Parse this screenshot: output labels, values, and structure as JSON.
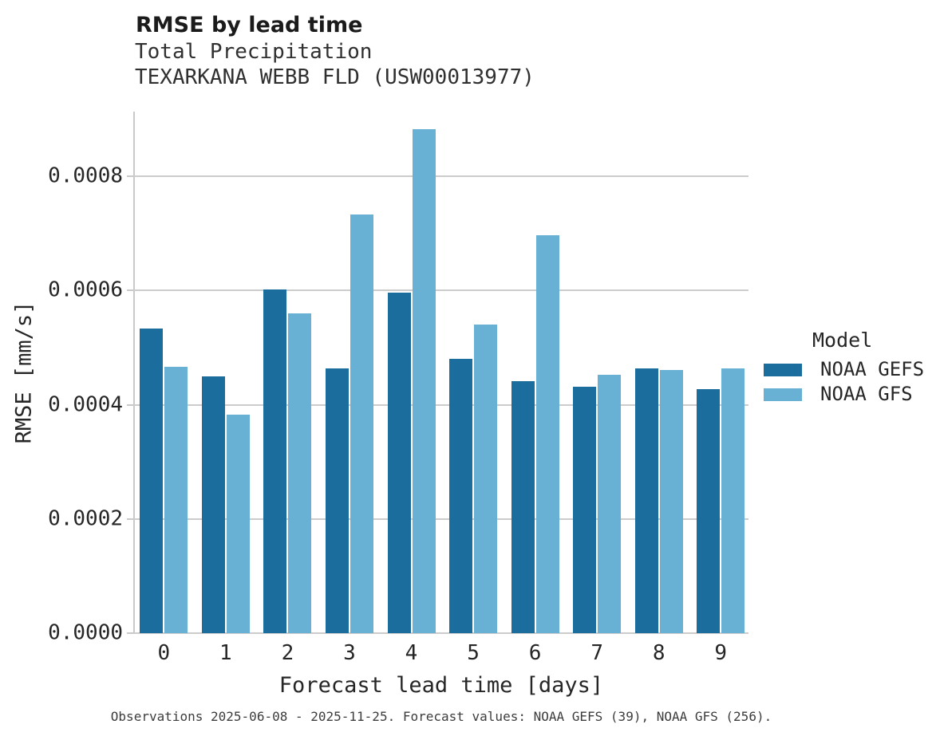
{
  "header": {
    "title": "RMSE by lead time",
    "subtitle": "Total Precipitation",
    "station": "TEXARKANA WEBB FLD (USW00013977)"
  },
  "legend": {
    "title": "Model",
    "items": [
      {
        "label": "NOAA GEFS",
        "color": "#1a6d9d"
      },
      {
        "label": "NOAA GFS",
        "color": "#69b0d5"
      }
    ]
  },
  "footnote": "Observations 2025-06-08 - 2025-11-25. Forecast values: NOAA GEFS (39), NOAA GFS (256).",
  "colors": {
    "gefs_bar": "#1a6d9d",
    "gfs_bar": "#69b0d5",
    "gridline": "#cccccc",
    "axis_line": "#c9c9c9",
    "title_text": "#1b1b1b",
    "body_text": "#262626",
    "footnote_text": "#3d3d3d",
    "background": "#ffffff"
  },
  "chart_data": {
    "type": "bar",
    "title": "RMSE by lead time",
    "subtitle": "Total Precipitation",
    "station": "TEXARKANA WEBB FLD (USW00013977)",
    "categories": [
      "0",
      "1",
      "2",
      "3",
      "4",
      "5",
      "6",
      "7",
      "8",
      "9"
    ],
    "series": [
      {
        "name": "NOAA GEFS",
        "color": "#1a6d9d",
        "values": [
          0.000533,
          0.00045,
          0.000602,
          0.000463,
          0.000597,
          0.00048,
          0.000441,
          0.000431,
          0.000463,
          0.000427
        ]
      },
      {
        "name": "NOAA GFS",
        "color": "#69b0d5",
        "values": [
          0.000467,
          0.000382,
          0.00056,
          0.000733,
          0.000883,
          0.000541,
          0.000697,
          0.000453,
          0.000461,
          0.000463
        ]
      }
    ],
    "xlabel": "Forecast lead time [days]",
    "ylabel": "RMSE [mm/s]",
    "ylim": [
      0,
      0.000913
    ],
    "yticks": [
      0,
      0.0002,
      0.0004,
      0.0006,
      0.0008
    ],
    "ytick_labels": [
      "0.0000",
      "0.0002",
      "0.0004",
      "0.0006",
      "0.0008"
    ],
    "grid": "horizontal",
    "legend_position": "right",
    "legend_title": "Model"
  }
}
